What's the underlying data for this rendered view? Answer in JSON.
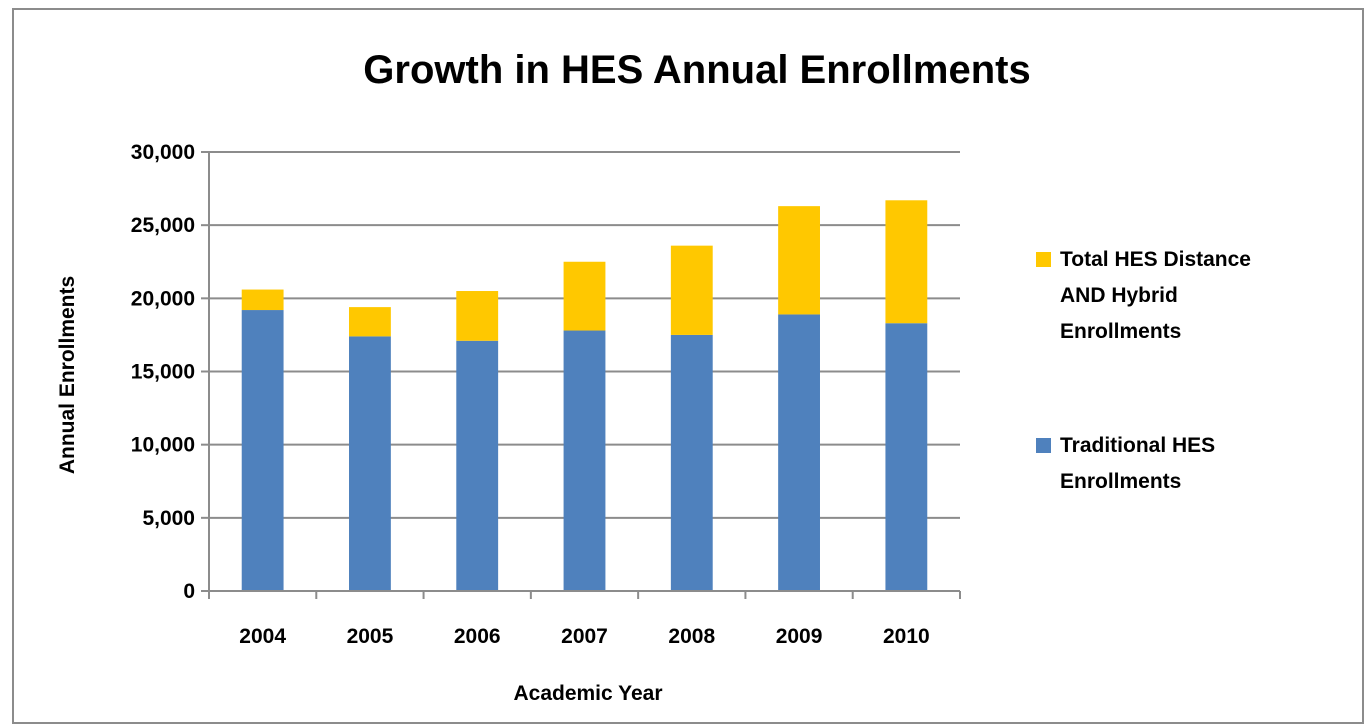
{
  "chart_data": {
    "type": "bar",
    "stacked": true,
    "title": "Growth in HES Annual Enrollments",
    "xlabel": "Academic Year",
    "ylabel": "Annual Enrollments",
    "categories": [
      "2004",
      "2005",
      "2006",
      "2007",
      "2008",
      "2009",
      "2010"
    ],
    "ylim": [
      0,
      30000
    ],
    "yticks": [
      "0",
      "5,000",
      "10,000",
      "15,000",
      "20,000",
      "25,000",
      "30,000"
    ],
    "ytick_values": [
      0,
      5000,
      10000,
      15000,
      20000,
      25000,
      30000
    ],
    "grid": "horizontal",
    "legend_position": "right",
    "series": [
      {
        "name": "Traditional HES Enrollments",
        "legend_lines": [
          "Traditional HES",
          "Enrollments"
        ],
        "color": "#4f81bd",
        "values": [
          19200,
          17400,
          17100,
          17800,
          17500,
          18900,
          18300
        ]
      },
      {
        "name": "Total HES Distance AND Hybrid Enrollments",
        "legend_lines": [
          "Total HES Distance",
          "AND Hybrid",
          "Enrollments"
        ],
        "color": "#ffc800",
        "values": [
          1400,
          2000,
          3400,
          4700,
          6100,
          7400,
          8400
        ]
      }
    ]
  }
}
